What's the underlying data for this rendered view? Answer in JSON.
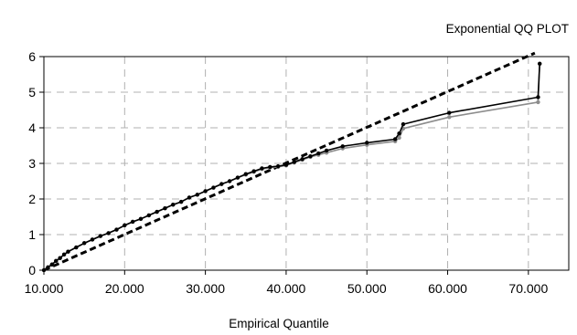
{
  "chart_data": {
    "type": "line",
    "title": "Exponential QQ PLOT",
    "xlabel": "Empirical Quantile",
    "ylabel": "",
    "xlim": [
      10,
      75
    ],
    "ylim": [
      0,
      6
    ],
    "xticks": [
      "10.000",
      "20.000",
      "30.000",
      "40.000",
      "50.000",
      "60.000",
      "70.000"
    ],
    "xtick_values": [
      10,
      20,
      30,
      40,
      50,
      60,
      70
    ],
    "yticks": [
      "0",
      "1",
      "2",
      "3",
      "4",
      "5",
      "6"
    ],
    "ytick_values": [
      0,
      1,
      2,
      3,
      4,
      5,
      6
    ],
    "grid": "dashed",
    "legend": "none",
    "series": [
      {
        "style": "dashed",
        "color": "#000000",
        "x": [
          10.0,
          70.8
        ],
        "y": [
          0.0,
          6.1
        ]
      },
      {
        "style": "solid",
        "color": "#8c8c8c",
        "markers": true,
        "x": [
          10.0,
          10.5,
          11.0,
          11.5,
          12.0,
          12.5,
          13.0,
          14.0,
          15.0,
          16.0,
          17.0,
          18.0,
          19.0,
          20.0,
          21.0,
          22.0,
          23.0,
          24.0,
          25.0,
          26.0,
          27.0,
          28.0,
          29.0,
          30.0,
          31.0,
          32.0,
          33.0,
          34.0,
          35.0,
          36.0,
          37.0,
          38.0,
          39.0,
          40.0,
          41.0,
          42.0,
          43.0,
          44.0,
          45.0,
          47.0,
          50.0,
          53.5,
          54.0,
          54.5,
          60.2,
          71.2,
          71.4
        ],
        "y": [
          0.0,
          0.08,
          0.16,
          0.26,
          0.34,
          0.44,
          0.52,
          0.64,
          0.76,
          0.86,
          0.96,
          1.04,
          1.14,
          1.26,
          1.36,
          1.44,
          1.54,
          1.64,
          1.74,
          1.84,
          1.92,
          2.04,
          2.12,
          2.22,
          2.32,
          2.42,
          2.5,
          2.6,
          2.68,
          2.76,
          2.84,
          2.88,
          2.9,
          2.94,
          3.02,
          3.1,
          3.18,
          3.24,
          3.3,
          3.42,
          3.52,
          3.62,
          3.72,
          3.98,
          4.3,
          4.72,
          5.8
        ]
      },
      {
        "style": "solid",
        "color": "#000000",
        "markers": true,
        "x": [
          10.0,
          10.5,
          11.0,
          11.5,
          12.0,
          12.5,
          13.0,
          14.0,
          15.0,
          16.0,
          17.0,
          18.0,
          19.0,
          20.0,
          21.0,
          22.0,
          23.0,
          24.0,
          25.0,
          26.0,
          27.0,
          28.0,
          29.0,
          30.0,
          31.0,
          32.0,
          33.0,
          34.0,
          35.0,
          36.0,
          37.0,
          38.0,
          39.0,
          40.0,
          41.0,
          42.0,
          43.0,
          44.0,
          45.0,
          47.0,
          50.0,
          53.5,
          54.0,
          54.5,
          60.2,
          71.2,
          71.4
        ],
        "y": [
          0.0,
          0.08,
          0.16,
          0.26,
          0.34,
          0.44,
          0.52,
          0.64,
          0.76,
          0.86,
          0.96,
          1.04,
          1.14,
          1.26,
          1.36,
          1.44,
          1.54,
          1.64,
          1.74,
          1.84,
          1.92,
          2.04,
          2.12,
          2.22,
          2.32,
          2.42,
          2.5,
          2.6,
          2.7,
          2.78,
          2.86,
          2.9,
          2.92,
          2.96,
          3.04,
          3.12,
          3.2,
          3.28,
          3.36,
          3.48,
          3.58,
          3.68,
          3.84,
          4.1,
          4.42,
          4.86,
          5.8
        ]
      }
    ]
  }
}
